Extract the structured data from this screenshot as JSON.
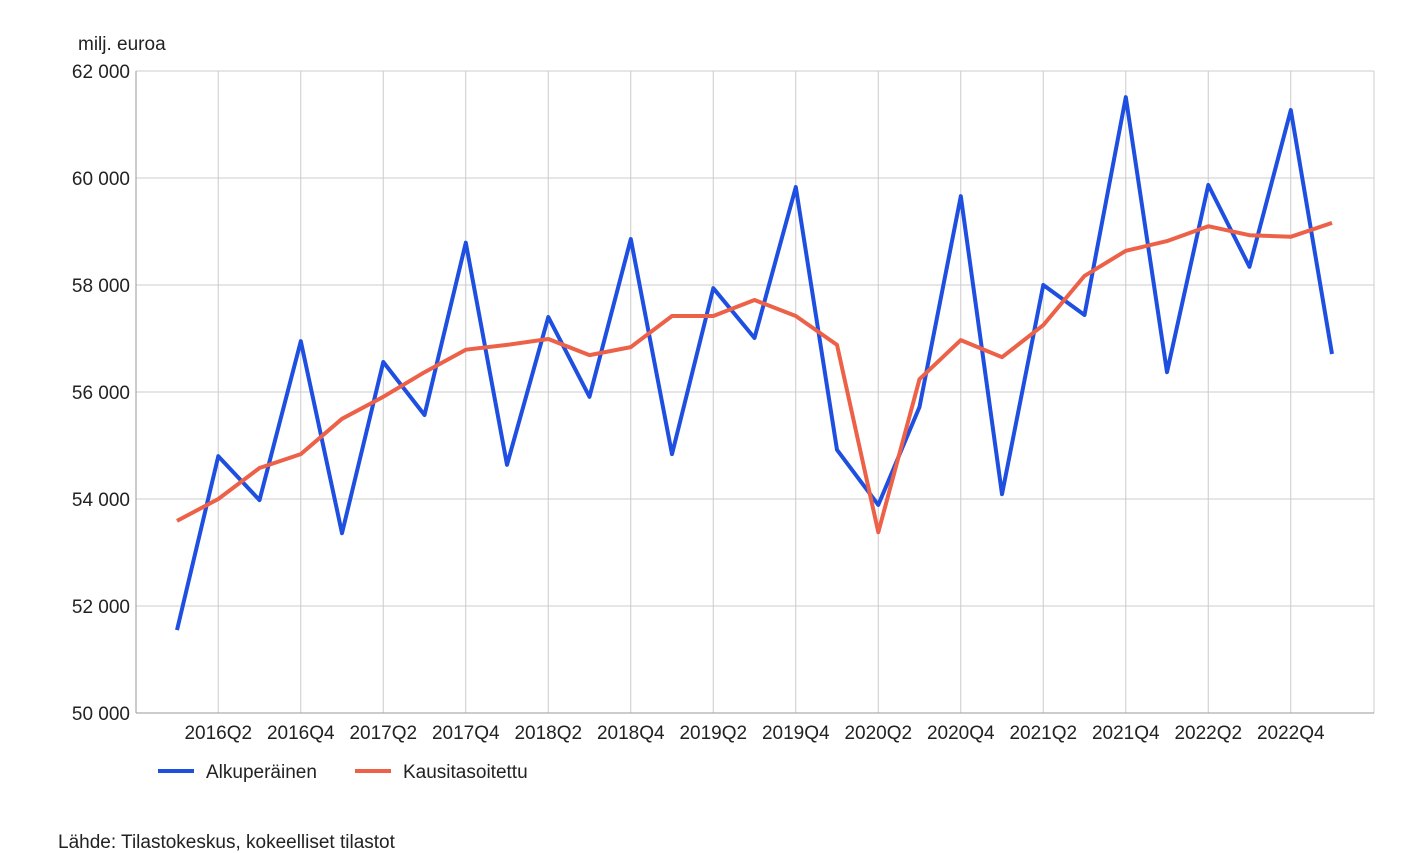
{
  "chart_data": {
    "type": "line",
    "y_label": "milj. euroa",
    "source": "Lähde: Tilastokeskus, kokeelliset tilastot",
    "categories": [
      null,
      "2016Q2",
      null,
      "2016Q4",
      null,
      "2017Q2",
      null,
      "2017Q4",
      null,
      "2018Q2",
      null,
      "2018Q4",
      null,
      "2019Q2",
      null,
      "2019Q4",
      null,
      "2020Q2",
      null,
      "2020Q4",
      null,
      "2021Q2",
      null,
      "2021Q4",
      null,
      "2022Q2",
      null,
      "2022Q4",
      null
    ],
    "series": [
      {
        "name": "Alkuperäinen",
        "color": "#1f4fe0",
        "values": [
          51550,
          54800,
          53980,
          56950,
          53360,
          56560,
          55570,
          58790,
          54640,
          57400,
          55910,
          58860,
          54840,
          57940,
          57010,
          59830,
          54920,
          53890,
          55720,
          59660,
          54090,
          58000,
          57440,
          61510,
          56370,
          59870,
          58340,
          61270,
          56710
        ]
      },
      {
        "name": "Kausitasoitettu",
        "color": "#ec6148",
        "values": [
          53590,
          54000,
          54580,
          54840,
          55500,
          55910,
          56370,
          56790,
          56880,
          56990,
          56690,
          56840,
          57420,
          57420,
          57720,
          57420,
          56880,
          53380,
          56240,
          56970,
          56650,
          57250,
          58170,
          58640,
          58820,
          59100,
          58930,
          58900,
          59160
        ]
      }
    ],
    "ylim": [
      50000,
      62000
    ],
    "yticks": [
      {
        "value": 50000,
        "label": "50 000"
      },
      {
        "value": 52000,
        "label": "52 000"
      },
      {
        "value": 54000,
        "label": "54 000"
      },
      {
        "value": 56000,
        "label": "56 000"
      },
      {
        "value": 58000,
        "label": "58 000"
      },
      {
        "value": 60000,
        "label": "60 000"
      },
      {
        "value": 62000,
        "label": "62 000"
      }
    ],
    "grid": true
  }
}
